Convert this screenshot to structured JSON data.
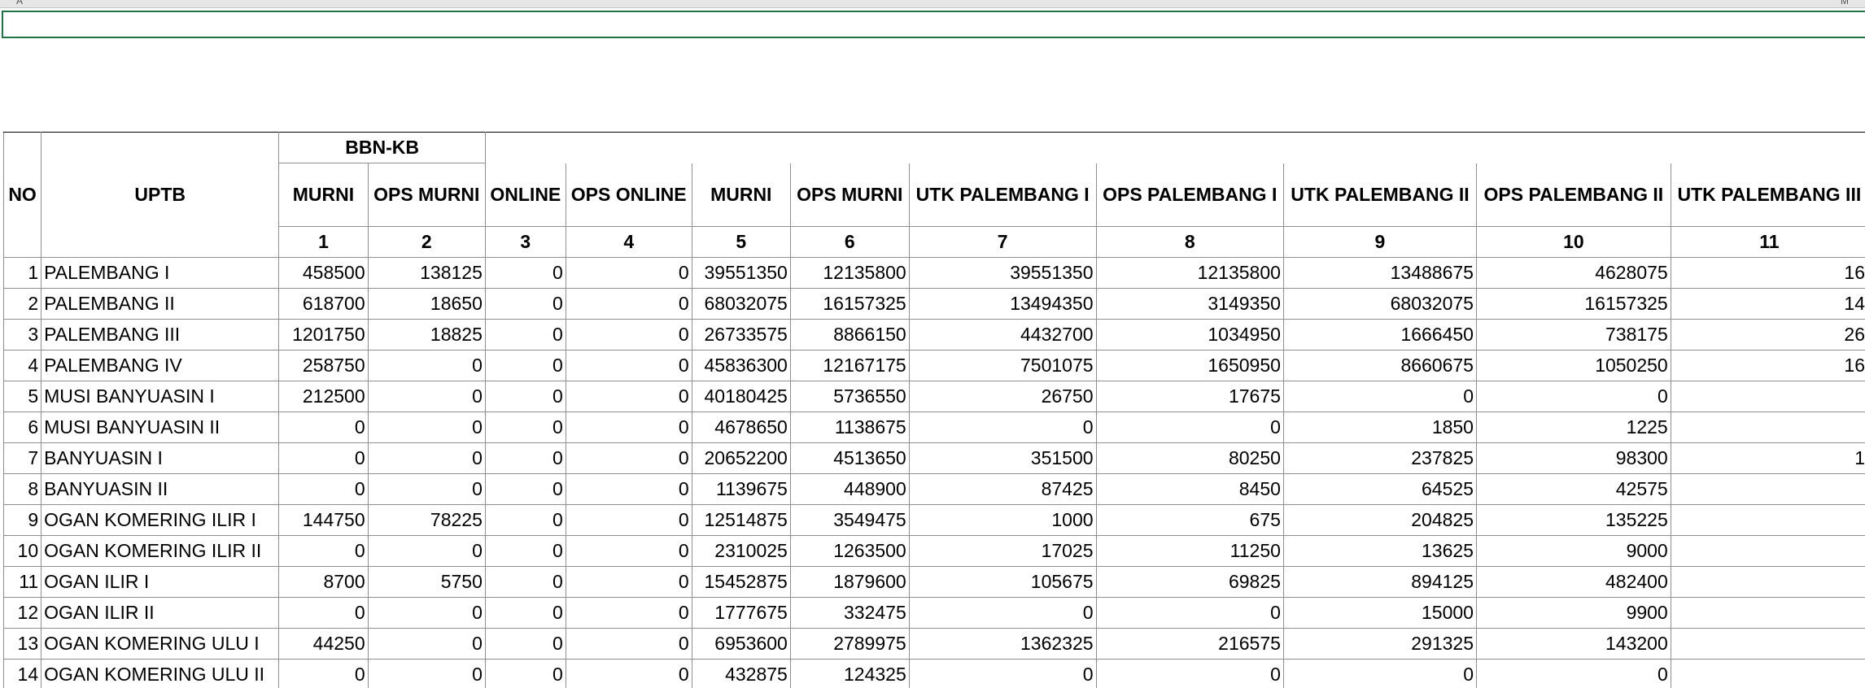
{
  "header": {
    "no": "NO",
    "uptb": "UPTB",
    "group_bbnkb": "BBN-KB",
    "columns": [
      "MURNI",
      "OPS MURNI",
      "ONLINE",
      "OPS ONLINE",
      "MURNI",
      "OPS MURNI",
      "UTK PALEMBANG I",
      "OPS PALEMBANG I",
      "UTK PALEMBANG II",
      "OPS PALEMBANG II",
      "UTK PALEMBANG III"
    ],
    "numbers": [
      "1",
      "2",
      "3",
      "4",
      "5",
      "6",
      "7",
      "8",
      "9",
      "10",
      "11"
    ]
  },
  "rows": [
    {
      "no": "1",
      "uptb": "PALEMBANG I",
      "v": [
        "458500",
        "138125",
        "0",
        "0",
        "39551350",
        "12135800",
        "39551350",
        "12135800",
        "13488675",
        "4628075",
        "16"
      ]
    },
    {
      "no": "2",
      "uptb": "PALEMBANG II",
      "v": [
        "618700",
        "18650",
        "0",
        "0",
        "68032075",
        "16157325",
        "13494350",
        "3149350",
        "68032075",
        "16157325",
        "14"
      ]
    },
    {
      "no": "3",
      "uptb": "PALEMBANG III",
      "v": [
        "1201750",
        "18825",
        "0",
        "0",
        "26733575",
        "8866150",
        "4432700",
        "1034950",
        "1666450",
        "738175",
        "26"
      ]
    },
    {
      "no": "4",
      "uptb": "PALEMBANG IV",
      "v": [
        "258750",
        "0",
        "0",
        "0",
        "45836300",
        "12167175",
        "7501075",
        "1650950",
        "8660675",
        "1050250",
        "16"
      ]
    },
    {
      "no": "5",
      "uptb": "MUSI BANYUASIN I",
      "v": [
        "212500",
        "0",
        "0",
        "0",
        "40180425",
        "5736550",
        "26750",
        "17675",
        "0",
        "0",
        ""
      ]
    },
    {
      "no": "6",
      "uptb": "MUSI BANYUASIN II",
      "v": [
        "0",
        "0",
        "0",
        "0",
        "4678650",
        "1138675",
        "0",
        "0",
        "1850",
        "1225",
        ""
      ]
    },
    {
      "no": "7",
      "uptb": "BANYUASIN I",
      "v": [
        "0",
        "0",
        "0",
        "0",
        "20652200",
        "4513650",
        "351500",
        "80250",
        "237825",
        "98300",
        "1"
      ]
    },
    {
      "no": "8",
      "uptb": "BANYUASIN II",
      "v": [
        "0",
        "0",
        "0",
        "0",
        "1139675",
        "448900",
        "87425",
        "8450",
        "64525",
        "42575",
        ""
      ]
    },
    {
      "no": "9",
      "uptb": "OGAN KOMERING ILIR I",
      "v": [
        "144750",
        "78225",
        "0",
        "0",
        "12514875",
        "3549475",
        "1000",
        "675",
        "204825",
        "135225",
        ""
      ]
    },
    {
      "no": "10",
      "uptb": "OGAN KOMERING ILIR II",
      "v": [
        "0",
        "0",
        "0",
        "0",
        "2310025",
        "1263500",
        "17025",
        "11250",
        "13625",
        "9000",
        ""
      ]
    },
    {
      "no": "11",
      "uptb": "OGAN ILIR I",
      "v": [
        "8700",
        "5750",
        "0",
        "0",
        "15452875",
        "1879600",
        "105675",
        "69825",
        "894125",
        "482400",
        ""
      ]
    },
    {
      "no": "12",
      "uptb": "OGAN ILIR II",
      "v": [
        "0",
        "0",
        "0",
        "0",
        "1777675",
        "332475",
        "0",
        "0",
        "15000",
        "9900",
        ""
      ]
    },
    {
      "no": "13",
      "uptb": "OGAN KOMERING ULU I",
      "v": [
        "44250",
        "0",
        "0",
        "0",
        "6953600",
        "2789975",
        "1362325",
        "216575",
        "291325",
        "143200",
        ""
      ]
    },
    {
      "no": "14",
      "uptb": "OGAN KOMERING ULU II",
      "v": [
        "0",
        "0",
        "0",
        "0",
        "432875",
        "124325",
        "0",
        "0",
        "0",
        "0",
        ""
      ]
    }
  ]
}
